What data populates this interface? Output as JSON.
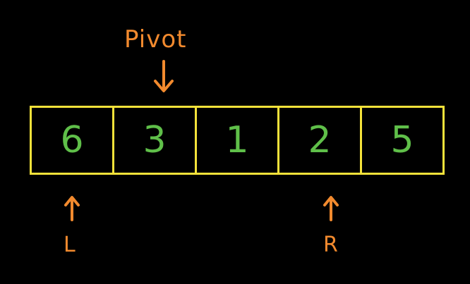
{
  "pivot_label": "Pivot",
  "array": {
    "values": [
      "6",
      "3",
      "1",
      "2",
      "5"
    ]
  },
  "pointers": {
    "left_label": "L",
    "right_label": "R"
  },
  "colors": {
    "background": "#000000",
    "cell_border": "#f5e23a",
    "values": "#5fbf49",
    "annotations": "#f28a2e"
  }
}
